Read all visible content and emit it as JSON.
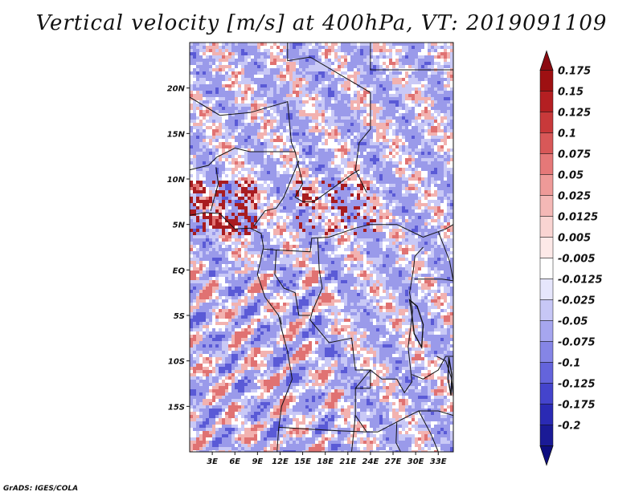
{
  "title": "Vertical velocity [m/s] at 400hPa, VT: 2019091109",
  "credit": "GrADS: IGES/COLA",
  "map": {
    "lon_range": [
      0,
      35
    ],
    "lat_range": [
      -20,
      25
    ],
    "lat_ticks": [
      {
        "value": 20,
        "label": "20N"
      },
      {
        "value": 15,
        "label": "15N"
      },
      {
        "value": 10,
        "label": "10N"
      },
      {
        "value": 5,
        "label": "5N"
      },
      {
        "value": 0,
        "label": "EQ"
      },
      {
        "value": -5,
        "label": "5S"
      },
      {
        "value": -10,
        "label": "10S"
      },
      {
        "value": -15,
        "label": "15S"
      }
    ],
    "lon_ticks": [
      {
        "value": 3,
        "label": "3E"
      },
      {
        "value": 6,
        "label": "6E"
      },
      {
        "value": 9,
        "label": "9E"
      },
      {
        "value": 12,
        "label": "12E"
      },
      {
        "value": 15,
        "label": "15E"
      },
      {
        "value": 18,
        "label": "18E"
      },
      {
        "value": 21,
        "label": "21E"
      },
      {
        "value": 24,
        "label": "24E"
      },
      {
        "value": 27,
        "label": "27E"
      },
      {
        "value": 30,
        "label": "30E"
      },
      {
        "value": 33,
        "label": "33E"
      }
    ]
  },
  "colorbar": {
    "levels": [
      {
        "label": "0.175",
        "color": "#9e1012"
      },
      {
        "label": "0.15",
        "color": "#b41f22"
      },
      {
        "label": "0.125",
        "color": "#c8393a"
      },
      {
        "label": "0.1",
        "color": "#d85858"
      },
      {
        "label": "0.075",
        "color": "#e57878"
      },
      {
        "label": "0.05",
        "color": "#ee9a98"
      },
      {
        "label": "0.025",
        "color": "#f4b8b6"
      },
      {
        "label": "0.0125",
        "color": "#f9d4d2"
      },
      {
        "label": "0.005",
        "color": "#fde9e8"
      },
      {
        "label": "-0.005",
        "color": "#ffffff"
      },
      {
        "label": "-0.0125",
        "color": "#e6e6fc"
      },
      {
        "label": "-0.025",
        "color": "#c7c7f6"
      },
      {
        "label": "-0.05",
        "color": "#a6a6ef"
      },
      {
        "label": "-0.075",
        "color": "#8585e6"
      },
      {
        "label": "-0.1",
        "color": "#6464dc"
      },
      {
        "label": "-0.125",
        "color": "#4444cc"
      },
      {
        "label": "-0.175",
        "color": "#2a2ab4"
      },
      {
        "label": "-0.2",
        "color": "#1a1a96"
      }
    ],
    "top_color": "#8b0a10",
    "bottom_color": "#0d0d80"
  },
  "field_colors": {
    "base": "#9a9aea",
    "light_blue": "#c9c9f6",
    "white": "#ffffff",
    "light_red": "#f2b2b0",
    "red": "#e07272",
    "dark_red": "#a81c20",
    "dark_blue": "#5a5ad6"
  }
}
